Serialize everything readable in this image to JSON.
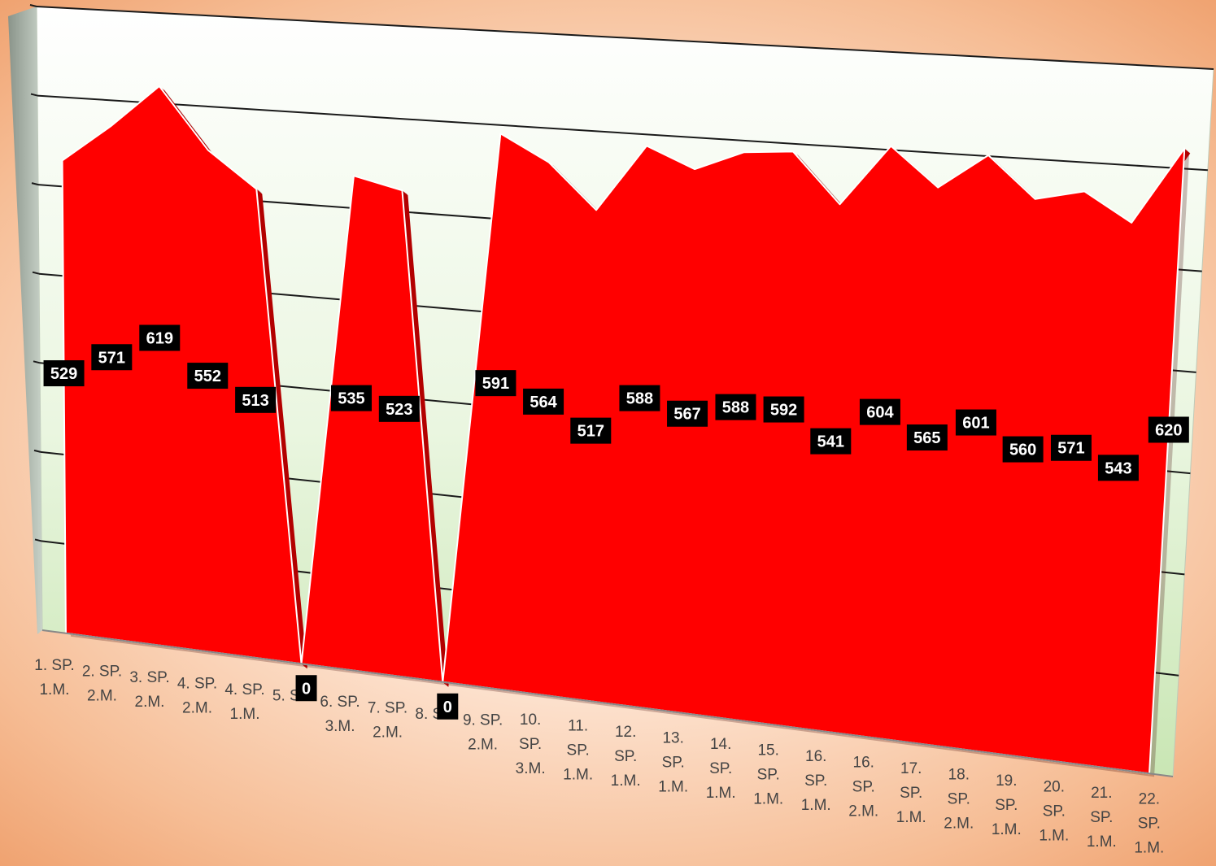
{
  "chart_data": {
    "type": "area",
    "title": "",
    "xlabel": "",
    "ylabel": "",
    "categories": [
      [
        "1. SP.",
        "1.M."
      ],
      [
        "2. SP.",
        "2.M."
      ],
      [
        "3. SP.",
        "2.M."
      ],
      [
        "4. SP.",
        "2.M."
      ],
      [
        "4. SP.",
        "1.M."
      ],
      [
        "5. SP."
      ],
      [
        "6. SP.",
        "3.M."
      ],
      [
        "7. SP.",
        "2.M."
      ],
      [
        "8. SP."
      ],
      [
        "9. SP.",
        "2.M."
      ],
      [
        "10.",
        "SP.",
        "3.M."
      ],
      [
        "11.",
        "SP.",
        "1.M."
      ],
      [
        "12.",
        "SP.",
        "1.M."
      ],
      [
        "13.",
        "SP.",
        "1.M."
      ],
      [
        "14.",
        "SP.",
        "1.M."
      ],
      [
        "15.",
        "SP.",
        "1.M."
      ],
      [
        "16.",
        "SP.",
        "1.M."
      ],
      [
        "16.",
        "SP.",
        "2.M."
      ],
      [
        "17.",
        "SP.",
        "1.M."
      ],
      [
        "18.",
        "SP.",
        "2.M."
      ],
      [
        "19.",
        "SP.",
        "1.M."
      ],
      [
        "20.",
        "SP.",
        "1.M."
      ],
      [
        "21.",
        "SP.",
        "1.M."
      ],
      [
        "22.",
        "SP.",
        "1.M."
      ]
    ],
    "values": [
      529,
      571,
      619,
      552,
      513,
      0,
      535,
      523,
      0,
      591,
      564,
      517,
      588,
      567,
      588,
      592,
      541,
      604,
      565,
      601,
      560,
      571,
      543,
      620
    ],
    "ylim": [
      0,
      700
    ],
    "grid": true,
    "legend": "none",
    "projection": "3d-perspective",
    "colors": {
      "area": "#ff0000",
      "area_top_edge": "#b30000",
      "label_bg": "#000000",
      "label_text": "#ffffff",
      "wall": "#eef8e6"
    }
  }
}
